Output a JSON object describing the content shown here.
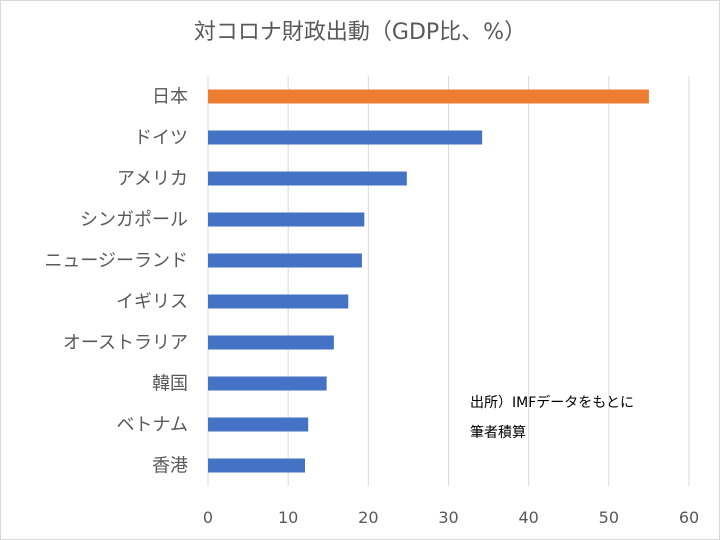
{
  "chart_data": {
    "type": "bar",
    "orientation": "horizontal",
    "title": "対コロナ財政出動（GDP比、%）",
    "categories": [
      "日本",
      "ドイツ",
      "アメリカ",
      "シンガポール",
      "ニュージーランド",
      "イギリス",
      "オーストラリア",
      "韓国",
      "ベトナム",
      "香港"
    ],
    "values": [
      55,
      34.2,
      24.8,
      19.5,
      19.2,
      17.5,
      15.7,
      14.8,
      12.5,
      12.1
    ],
    "bar_colors": [
      "#ed7d31",
      "#4472c4",
      "#4472c4",
      "#4472c4",
      "#4472c4",
      "#4472c4",
      "#4472c4",
      "#4472c4",
      "#4472c4",
      "#4472c4"
    ],
    "xlim": [
      0,
      60
    ],
    "xticks": [
      "0",
      "10",
      "20",
      "30",
      "40",
      "50",
      "60"
    ],
    "grid": true,
    "legend": "none",
    "annotation": [
      "出所）IMFデータをもとに",
      "筆者積算"
    ]
  },
  "colors": {
    "highlight": "#ed7d31",
    "bar": "#4472c4",
    "grid": "#d9d9d9",
    "text": "#595959"
  }
}
